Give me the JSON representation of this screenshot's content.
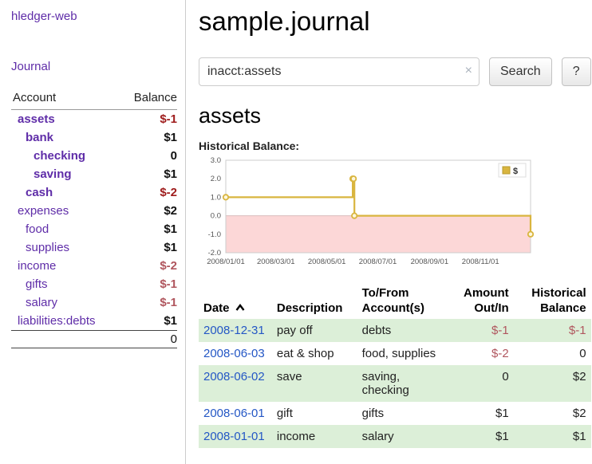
{
  "colors": {
    "link_purple": "#5f2da8",
    "date_link_blue": "#2457c5",
    "negative_strong": "#9e1b1b",
    "negative_light": "#b0565e",
    "row_green": "#dcefd8",
    "chart_line": "#d9b53f",
    "chart_negative_area": "#fcd7d7"
  },
  "app": {
    "title": "hledger-web"
  },
  "sidebar": {
    "journal_link": "Journal",
    "headers": {
      "account": "Account",
      "balance": "Balance"
    },
    "accounts": [
      {
        "name": "assets",
        "balance": "$-1",
        "indent": 1,
        "bold": true,
        "neg": "strong"
      },
      {
        "name": "bank",
        "balance": "$1",
        "indent": 2,
        "bold": true,
        "neg": ""
      },
      {
        "name": "checking",
        "balance": "0",
        "indent": 3,
        "bold": true,
        "neg": ""
      },
      {
        "name": "saving",
        "balance": "$1",
        "indent": 3,
        "bold": true,
        "neg": ""
      },
      {
        "name": "cash",
        "balance": "$-2",
        "indent": 2,
        "bold": true,
        "neg": "strong"
      },
      {
        "name": "expenses",
        "balance": "$2",
        "indent": 1,
        "bold": false,
        "neg": ""
      },
      {
        "name": "food",
        "balance": "$1",
        "indent": 2,
        "bold": false,
        "neg": ""
      },
      {
        "name": "supplies",
        "balance": "$1",
        "indent": 2,
        "bold": false,
        "neg": ""
      },
      {
        "name": "income",
        "balance": "$-2",
        "indent": 1,
        "bold": false,
        "neg": "light"
      },
      {
        "name": "gifts",
        "balance": "$-1",
        "indent": 2,
        "bold": false,
        "neg": "light"
      },
      {
        "name": "salary",
        "balance": "$-1",
        "indent": 2,
        "bold": false,
        "neg": "light"
      },
      {
        "name": "liabilities:debts",
        "balance": "$1",
        "indent": 1,
        "bold": false,
        "neg": ""
      }
    ],
    "total": "0"
  },
  "main": {
    "title": "sample.journal",
    "search": {
      "value": "inacct:assets",
      "clear_icon": "×",
      "button_label": "Search",
      "help_label": "?"
    },
    "account_heading": "assets",
    "chart_heading": "Historical Balance:"
  },
  "chart_data": {
    "type": "line",
    "style": "step-after",
    "title": "Historical Balance",
    "series": [
      {
        "name": "$",
        "points": [
          [
            "2008-01-01",
            1
          ],
          [
            "2008-06-01",
            2
          ],
          [
            "2008-06-02",
            2
          ],
          [
            "2008-06-03",
            0
          ],
          [
            "2008-12-31",
            -1
          ]
        ]
      }
    ],
    "x_domain": [
      "2008-01-01",
      "2008-12-31"
    ],
    "ylim": [
      -2.0,
      3.0
    ],
    "yticks": [
      "3.0",
      "2.0",
      "1.0",
      "0.0",
      "-1.0",
      "-2.0"
    ],
    "xticks": [
      "2008/01/01",
      "2008/03/01",
      "2008/05/01",
      "2008/07/01",
      "2008/09/01",
      "2008/11/01"
    ],
    "legend": [
      {
        "label": "$",
        "color": "#d9b53f"
      }
    ],
    "legend_position": "top-right",
    "grid": false
  },
  "register": {
    "headers": {
      "date": "Date",
      "description": "Description",
      "accounts": "To/From Account(s)",
      "amount": "Amount Out/In",
      "balance": "Historical Balance"
    },
    "sort_icon": "chevron-up",
    "rows": [
      {
        "date": "2008-12-31",
        "description": "pay off",
        "accounts": "debts",
        "amount": "$-1",
        "balance": "$-1",
        "amount_neg": true,
        "balance_neg": true
      },
      {
        "date": "2008-06-03",
        "description": "eat & shop",
        "accounts": "food, supplies",
        "amount": "$-2",
        "balance": "0",
        "amount_neg": true,
        "balance_neg": false
      },
      {
        "date": "2008-06-02",
        "description": "save",
        "accounts": "saving, checking",
        "amount": "0",
        "balance": "$2",
        "amount_neg": false,
        "balance_neg": false
      },
      {
        "date": "2008-06-01",
        "description": "gift",
        "accounts": "gifts",
        "amount": "$1",
        "balance": "$2",
        "amount_neg": false,
        "balance_neg": false
      },
      {
        "date": "2008-01-01",
        "description": "income",
        "accounts": "salary",
        "amount": "$1",
        "balance": "$1",
        "amount_neg": false,
        "balance_neg": false
      }
    ]
  }
}
